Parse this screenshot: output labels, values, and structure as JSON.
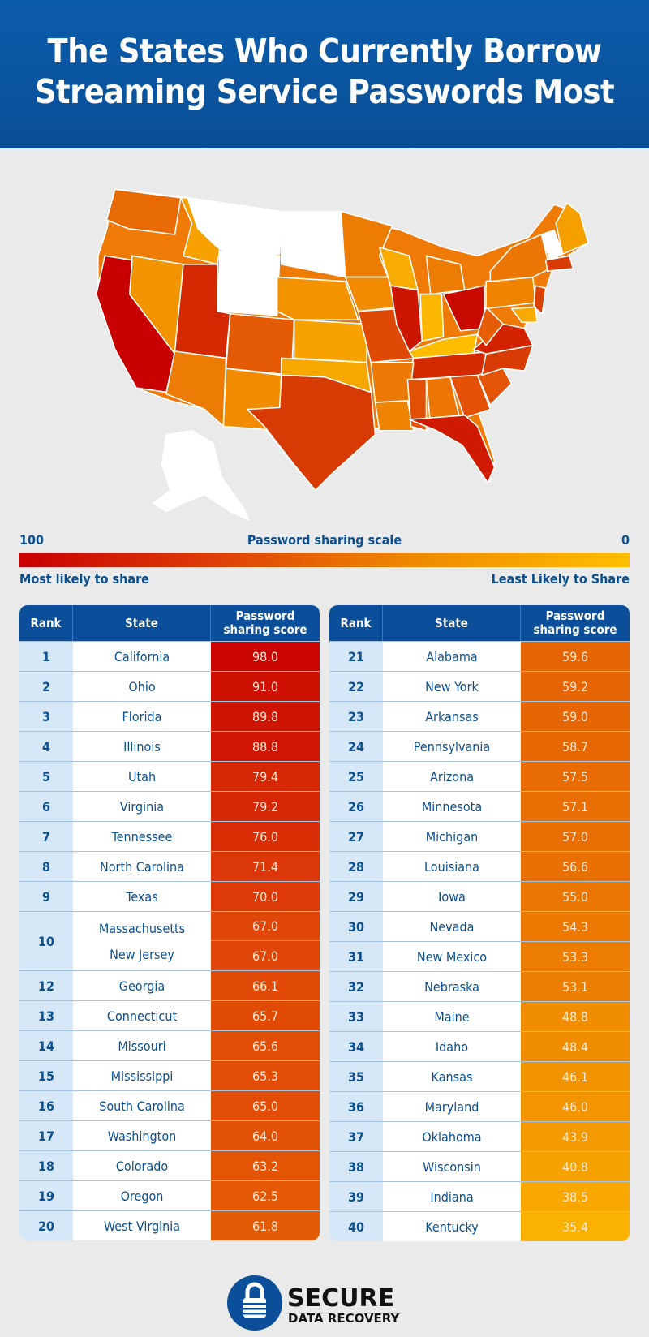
{
  "title": {
    "line1": "The States Who Currently Borrow",
    "line2": "Streaming Service Passwords Most"
  },
  "scale": {
    "max_label": "100",
    "title": "Password sharing scale",
    "min_label": "0",
    "left_label": "Most likely to share",
    "right_label": "Least Likely to Share",
    "colors": [
      "#c80000",
      "#dd3a08",
      "#ef8a00",
      "#ffbf00"
    ]
  },
  "chart_data": {
    "type": "table",
    "title": "The States Who Currently Borrow Streaming Service Passwords Most",
    "columns": [
      "Rank",
      "State",
      "Password sharing score"
    ],
    "left": [
      {
        "rank": "1",
        "states": [
          "California"
        ],
        "scores": [
          "98.0"
        ]
      },
      {
        "rank": "2",
        "states": [
          "Ohio"
        ],
        "scores": [
          "91.0"
        ]
      },
      {
        "rank": "3",
        "states": [
          "Florida"
        ],
        "scores": [
          "89.8"
        ]
      },
      {
        "rank": "4",
        "states": [
          "Illinois"
        ],
        "scores": [
          "88.8"
        ]
      },
      {
        "rank": "5",
        "states": [
          "Utah"
        ],
        "scores": [
          "79.4"
        ]
      },
      {
        "rank": "6",
        "states": [
          "Virginia"
        ],
        "scores": [
          "79.2"
        ]
      },
      {
        "rank": "7",
        "states": [
          "Tennessee"
        ],
        "scores": [
          "76.0"
        ]
      },
      {
        "rank": "8",
        "states": [
          "North Carolina"
        ],
        "scores": [
          "71.4"
        ]
      },
      {
        "rank": "9",
        "states": [
          "Texas"
        ],
        "scores": [
          "70.0"
        ]
      },
      {
        "rank": "10",
        "states": [
          "Massachusetts",
          "New Jersey"
        ],
        "scores": [
          "67.0",
          "67.0"
        ]
      },
      {
        "rank": "12",
        "states": [
          "Georgia"
        ],
        "scores": [
          "66.1"
        ]
      },
      {
        "rank": "13",
        "states": [
          "Connecticut"
        ],
        "scores": [
          "65.7"
        ]
      },
      {
        "rank": "14",
        "states": [
          "Missouri"
        ],
        "scores": [
          "65.6"
        ]
      },
      {
        "rank": "15",
        "states": [
          "Mississippi"
        ],
        "scores": [
          "65.3"
        ]
      },
      {
        "rank": "16",
        "states": [
          "South Carolina"
        ],
        "scores": [
          "65.0"
        ]
      },
      {
        "rank": "17",
        "states": [
          "Washington"
        ],
        "scores": [
          "64.0"
        ]
      },
      {
        "rank": "18",
        "states": [
          "Colorado"
        ],
        "scores": [
          "63.2"
        ]
      },
      {
        "rank": "19",
        "states": [
          "Oregon"
        ],
        "scores": [
          "62.5"
        ]
      },
      {
        "rank": "20",
        "states": [
          "West Virginia"
        ],
        "scores": [
          "61.8"
        ]
      }
    ],
    "right": [
      {
        "rank": "21",
        "states": [
          "Alabama"
        ],
        "scores": [
          "59.6"
        ]
      },
      {
        "rank": "22",
        "states": [
          "New York"
        ],
        "scores": [
          "59.2"
        ]
      },
      {
        "rank": "23",
        "states": [
          "Arkansas"
        ],
        "scores": [
          "59.0"
        ]
      },
      {
        "rank": "24",
        "states": [
          "Pennsylvania"
        ],
        "scores": [
          "58.7"
        ]
      },
      {
        "rank": "25",
        "states": [
          "Arizona"
        ],
        "scores": [
          "57.5"
        ]
      },
      {
        "rank": "26",
        "states": [
          "Minnesota"
        ],
        "scores": [
          "57.1"
        ]
      },
      {
        "rank": "27",
        "states": [
          "Michigan"
        ],
        "scores": [
          "57.0"
        ]
      },
      {
        "rank": "28",
        "states": [
          "Louisiana"
        ],
        "scores": [
          "56.6"
        ]
      },
      {
        "rank": "29",
        "states": [
          "Iowa"
        ],
        "scores": [
          "55.0"
        ]
      },
      {
        "rank": "30",
        "states": [
          "Nevada"
        ],
        "scores": [
          "54.3"
        ]
      },
      {
        "rank": "31",
        "states": [
          "New Mexico"
        ],
        "scores": [
          "53.3"
        ]
      },
      {
        "rank": "32",
        "states": [
          "Nebraska"
        ],
        "scores": [
          "53.1"
        ]
      },
      {
        "rank": "33",
        "states": [
          "Maine"
        ],
        "scores": [
          "48.8"
        ]
      },
      {
        "rank": "34",
        "states": [
          "Idaho"
        ],
        "scores": [
          "48.4"
        ]
      },
      {
        "rank": "35",
        "states": [
          "Kansas"
        ],
        "scores": [
          "46.1"
        ]
      },
      {
        "rank": "36",
        "states": [
          "Maryland"
        ],
        "scores": [
          "46.0"
        ]
      },
      {
        "rank": "37",
        "states": [
          "Oklahoma"
        ],
        "scores": [
          "43.9"
        ]
      },
      {
        "rank": "38",
        "states": [
          "Wisconsin"
        ],
        "scores": [
          "40.8"
        ]
      },
      {
        "rank": "39",
        "states": [
          "Indiana"
        ],
        "scores": [
          "38.5"
        ]
      },
      {
        "rank": "40",
        "states": [
          "Kentucky"
        ],
        "scores": [
          "35.4"
        ]
      }
    ]
  },
  "logo": {
    "line1": "SECURE",
    "line2": "DATA RECOVERY",
    "color": "#0b4f9a"
  }
}
